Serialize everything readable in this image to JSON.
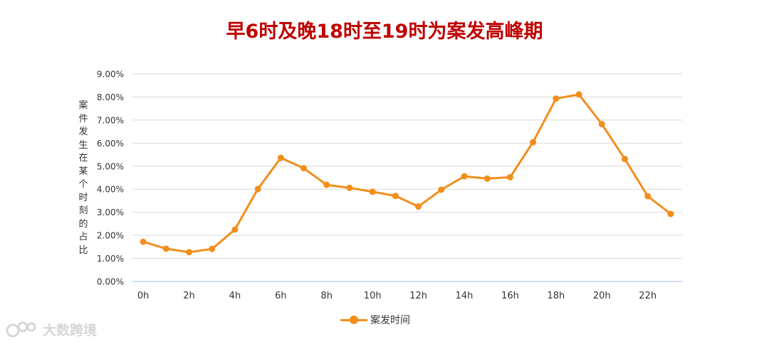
{
  "chart_data": {
    "type": "line",
    "title": "早6时及晚18时至19时为案发高峰期",
    "ylabel": "案件发生在某个时刻的占比",
    "xlabel": "",
    "x": [
      "0h",
      "1h",
      "2h",
      "3h",
      "4h",
      "5h",
      "6h",
      "7h",
      "8h",
      "9h",
      "10h",
      "11h",
      "12h",
      "13h",
      "14h",
      "15h",
      "16h",
      "17h",
      "18h",
      "19h",
      "20h",
      "21h",
      "22h",
      "23h"
    ],
    "x_tick_labels": [
      "0h",
      "2h",
      "4h",
      "6h",
      "8h",
      "10h",
      "12h",
      "14h",
      "16h",
      "18h",
      "20h",
      "22h"
    ],
    "y_tick_labels": [
      "0.00%",
      "1.00%",
      "2.00%",
      "3.00%",
      "4.00%",
      "5.00%",
      "6.00%",
      "7.00%",
      "8.00%",
      "9.00%"
    ],
    "ylim": [
      0,
      9
    ],
    "series": [
      {
        "name": "案发时间",
        "color": "#f28e1c",
        "values": [
          1.72,
          1.42,
          1.27,
          1.41,
          2.25,
          4.01,
          5.36,
          4.91,
          4.19,
          4.06,
          3.89,
          3.71,
          3.25,
          3.98,
          4.56,
          4.46,
          4.52,
          6.04,
          7.93,
          8.11,
          6.82,
          5.31,
          3.7,
          2.93
        ]
      }
    ],
    "grid": true,
    "legend_position": "bottom"
  },
  "watermark": {
    "text": "大数跨境"
  }
}
